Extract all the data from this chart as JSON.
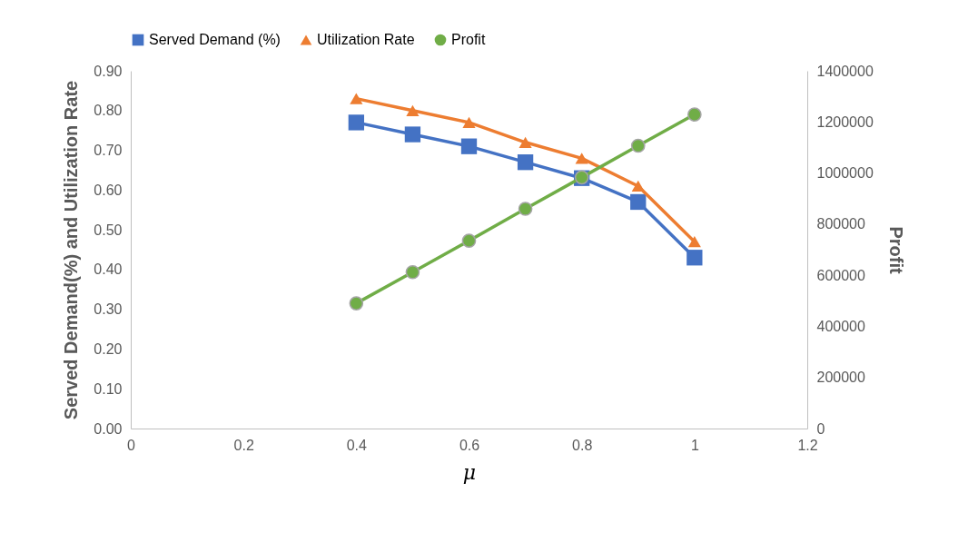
{
  "chart_data": {
    "type": "line",
    "xlabel": "μ",
    "ylabel": "Served Demand(%) and Utilization Rate",
    "y2label": "Profit",
    "x": [
      0.4,
      0.5,
      0.6,
      0.7,
      0.8,
      0.9,
      1
    ],
    "series": [
      {
        "name": "Served Demand (%)",
        "color": "#4472c4",
        "marker": "square",
        "values": [
          0.77,
          0.74,
          0.71,
          0.67,
          0.63,
          0.57,
          0.43
        ]
      },
      {
        "name": "Utilization Rate",
        "color": "#ed7d31",
        "marker": "triangle",
        "values": [
          0.83,
          0.8,
          0.77,
          0.72,
          0.68,
          0.61,
          0.47
        ]
      },
      {
        "name": "Profit",
        "color": "#70ad47",
        "marker": "circle",
        "axis": "y2",
        "values": [
          490000,
          612000,
          735000,
          860000,
          983000,
          1107000,
          1229000
        ]
      }
    ],
    "xlim": [
      0,
      1.2
    ],
    "xticks": [
      0,
      0.2,
      0.4,
      0.6,
      0.8,
      1,
      1.2
    ],
    "ylim": [
      0,
      0.9
    ],
    "yticks": [
      {
        "value": 0,
        "label": "0.00"
      },
      {
        "value": 0.1,
        "label": "0.10"
      },
      {
        "value": 0.2,
        "label": "0.20"
      },
      {
        "value": 0.3,
        "label": "0.30"
      },
      {
        "value": 0.4,
        "label": "0.40"
      },
      {
        "value": 0.5,
        "label": "0.50"
      },
      {
        "value": 0.6,
        "label": "0.60"
      },
      {
        "value": 0.7,
        "label": "0.70"
      },
      {
        "value": 0.8,
        "label": "0.80"
      },
      {
        "value": 0.9,
        "label": "0.90"
      }
    ],
    "y2lim": [
      0,
      1400000
    ],
    "y2ticks": [
      0,
      200000,
      400000,
      600000,
      800000,
      1000000,
      1200000,
      1400000
    ],
    "grid": false,
    "legend": "top"
  }
}
